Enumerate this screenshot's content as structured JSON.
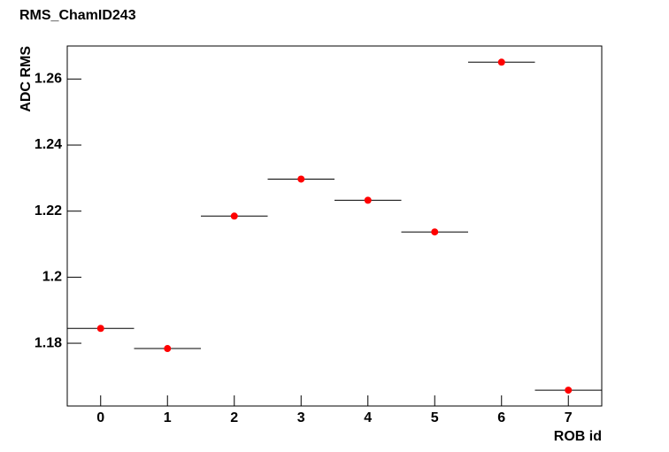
{
  "chart_data": {
    "type": "scatter",
    "title": "RMS_ChamID243",
    "x_label": "ROB id",
    "y_label": "ADC RMS",
    "x": [
      0,
      1,
      2,
      3,
      4,
      5,
      6,
      7
    ],
    "x_errors": [
      0.5,
      0.5,
      0.5,
      0.5,
      0.5,
      0.5,
      0.5,
      0.5
    ],
    "values": [
      1.1845,
      1.1784,
      1.2185,
      1.2297,
      1.2233,
      1.2137,
      1.2651,
      1.1658
    ],
    "color": "#ff0000",
    "xlim": [
      -0.5,
      7.5
    ],
    "xticks": [
      0,
      1,
      2,
      3,
      4,
      5,
      6,
      7
    ],
    "ylim": [
      1.161,
      1.27
    ],
    "yticks": [
      1.18,
      1.2,
      1.22,
      1.24,
      1.26
    ]
  }
}
